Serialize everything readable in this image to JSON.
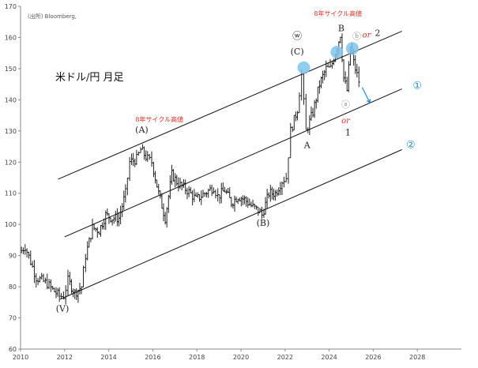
{
  "chart_data": {
    "type": "line",
    "subtype": "monthly-ohlc",
    "title": "米ドル/円 月足",
    "source_note": "(出所) Bloomberg,",
    "x_axis": {
      "range": [
        2010,
        2030
      ],
      "ticks": [
        "2010",
        "2012",
        "2014",
        "2016",
        "2018",
        "2020",
        "2022",
        "2024",
        "2026",
        "2028"
      ]
    },
    "y_axis": {
      "range": [
        60,
        170
      ],
      "ticks": [
        60,
        70,
        80,
        90,
        100,
        110,
        120,
        130,
        140,
        150,
        160,
        170
      ]
    },
    "grid": false,
    "price_series": [
      {
        "t": 2010.0,
        "v": 91
      },
      {
        "t": 2010.25,
        "v": 93
      },
      {
        "t": 2010.5,
        "v": 88
      },
      {
        "t": 2010.75,
        "v": 83
      },
      {
        "t": 2011.0,
        "v": 82
      },
      {
        "t": 2011.25,
        "v": 81
      },
      {
        "t": 2011.5,
        "v": 79
      },
      {
        "t": 2011.8,
        "v": 77
      },
      {
        "t": 2012.0,
        "v": 77
      },
      {
        "t": 2012.2,
        "v": 82
      },
      {
        "t": 2012.5,
        "v": 78
      },
      {
        "t": 2012.8,
        "v": 80
      },
      {
        "t": 2013.0,
        "v": 90
      },
      {
        "t": 2013.3,
        "v": 99
      },
      {
        "t": 2013.6,
        "v": 98
      },
      {
        "t": 2013.9,
        "v": 103
      },
      {
        "t": 2014.2,
        "v": 102
      },
      {
        "t": 2014.5,
        "v": 102
      },
      {
        "t": 2014.8,
        "v": 110
      },
      {
        "t": 2015.0,
        "v": 120
      },
      {
        "t": 2015.3,
        "v": 121
      },
      {
        "t": 2015.5,
        "v": 124
      },
      {
        "t": 2015.8,
        "v": 121
      },
      {
        "t": 2016.0,
        "v": 120
      },
      {
        "t": 2016.3,
        "v": 110
      },
      {
        "t": 2016.6,
        "v": 102
      },
      {
        "t": 2016.9,
        "v": 116
      },
      {
        "t": 2017.2,
        "v": 113
      },
      {
        "t": 2017.6,
        "v": 111
      },
      {
        "t": 2018.0,
        "v": 108
      },
      {
        "t": 2018.4,
        "v": 110
      },
      {
        "t": 2018.8,
        "v": 112
      },
      {
        "t": 2019.0,
        "v": 109
      },
      {
        "t": 2019.3,
        "v": 111
      },
      {
        "t": 2019.6,
        "v": 107
      },
      {
        "t": 2019.9,
        "v": 109
      },
      {
        "t": 2020.2,
        "v": 108
      },
      {
        "t": 2020.5,
        "v": 106
      },
      {
        "t": 2020.9,
        "v": 104
      },
      {
        "t": 2021.0,
        "v": 103
      },
      {
        "t": 2021.3,
        "v": 110
      },
      {
        "t": 2021.6,
        "v": 110
      },
      {
        "t": 2021.9,
        "v": 114
      },
      {
        "t": 2022.1,
        "v": 115
      },
      {
        "t": 2022.3,
        "v": 130
      },
      {
        "t": 2022.6,
        "v": 137
      },
      {
        "t": 2022.8,
        "v": 148
      },
      {
        "t": 2023.0,
        "v": 130
      },
      {
        "t": 2023.3,
        "v": 136
      },
      {
        "t": 2023.6,
        "v": 145
      },
      {
        "t": 2023.9,
        "v": 150
      },
      {
        "t": 2024.1,
        "v": 150
      },
      {
        "t": 2024.4,
        "v": 157
      },
      {
        "t": 2024.55,
        "v": 161
      },
      {
        "t": 2024.7,
        "v": 147
      },
      {
        "t": 2024.85,
        "v": 143
      },
      {
        "t": 2025.0,
        "v": 157
      },
      {
        "t": 2025.15,
        "v": 152
      },
      {
        "t": 2025.3,
        "v": 148
      },
      {
        "t": 2025.4,
        "v": 146
      }
    ],
    "channels": [
      {
        "name": "channel-upper",
        "t1": 2011.7,
        "v1": 114.5,
        "t2": 2027.3,
        "v2": 162
      },
      {
        "name": "channel-middle",
        "t1": 2012.0,
        "v1": 96,
        "t2": 2027.3,
        "v2": 143.5
      },
      {
        "name": "channel-lower",
        "t1": 2011.8,
        "v1": 76,
        "t2": 2027.3,
        "v2": 124
      }
    ],
    "highlight_points": [
      {
        "t": 2022.85,
        "v": 150.3
      },
      {
        "t": 2024.35,
        "v": 155.3
      },
      {
        "t": 2025.05,
        "v": 156.5
      }
    ],
    "forecast_arrow": {
      "t1": 2025.5,
      "v1": 144,
      "t2": 2025.85,
      "v2": 139
    },
    "annotations": [
      {
        "name": "label-v",
        "text": "(V)",
        "t": 2011.9,
        "v": 72,
        "color": "#222222",
        "size": 11
      },
      {
        "name": "label-a-paren",
        "text": "(A)",
        "t": 2015.5,
        "v": 129.5,
        "color": "#222222",
        "size": 11
      },
      {
        "name": "label-b-paren",
        "text": "(B)",
        "t": 2021.0,
        "v": 99.5,
        "color": "#222222",
        "size": 11
      },
      {
        "name": "label-c-paren",
        "text": "(C)",
        "t": 2022.55,
        "v": 154.5,
        "color": "#222222",
        "size": 11
      },
      {
        "name": "label-w",
        "text": "ⓦ",
        "t": 2022.55,
        "v": 159.5,
        "color": "#222222",
        "size": 12
      },
      {
        "name": "label-b",
        "text": "B",
        "t": 2024.55,
        "v": 162,
        "color": "#222222",
        "size": 11
      },
      {
        "name": "label-a",
        "text": "A",
        "t": 2023.0,
        "v": 124.5,
        "color": "#222222",
        "size": 11
      },
      {
        "name": "label-1",
        "text": "1",
        "t": 2024.85,
        "v": 128.5,
        "color": "#222222",
        "size": 11
      },
      {
        "name": "label-a-circle",
        "text": "ⓐ",
        "t": 2024.75,
        "v": 137.5,
        "color": "#999999",
        "size": 11
      },
      {
        "name": "label-b-circle",
        "text": "ⓑ",
        "t": 2025.25,
        "v": 159.5,
        "color": "#999999",
        "size": 11
      },
      {
        "name": "label-or-bottom",
        "text": "or",
        "t": 2024.75,
        "v": 132.5,
        "color": "#d93025",
        "size": 10,
        "italic": true
      },
      {
        "name": "label-or-top",
        "text": "or",
        "t": 2025.7,
        "v": 160,
        "color": "#d93025",
        "size": 10,
        "italic": true
      },
      {
        "name": "label-2-top",
        "text": "2",
        "t": 2026.2,
        "v": 160.5,
        "color": "#222222",
        "size": 11
      },
      {
        "name": "cycle-high-left",
        "text": "8年サイクル高値",
        "t": 2016.3,
        "v": 133,
        "color": "#d93025",
        "size": 8
      },
      {
        "name": "cycle-high-top",
        "text": "8年サイクル高値",
        "t": 2024.4,
        "v": 167,
        "color": "#d93025",
        "size": 8
      },
      {
        "name": "channel-label-1",
        "text": "①",
        "t": 2028.0,
        "v": 143.5,
        "color": "#2188c9",
        "size": 13
      },
      {
        "name": "channel-label-2",
        "text": "②",
        "t": 2027.7,
        "v": 124.5,
        "color": "#2188c9",
        "size": 13
      }
    ]
  }
}
